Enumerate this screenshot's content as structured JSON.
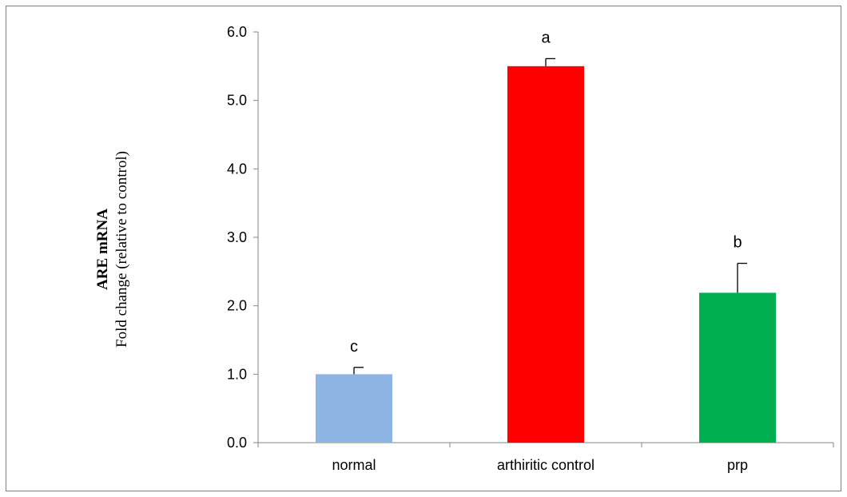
{
  "chart_data": {
    "type": "bar",
    "categories": [
      "normal",
      "arthiritic control",
      "prp"
    ],
    "values": [
      1.0,
      5.5,
      2.19
    ],
    "errors": [
      0.1,
      0.11,
      0.43
    ],
    "significance_labels": [
      "c",
      "a",
      "b"
    ],
    "colors": [
      "#8eb4e3",
      "#ff0000",
      "#00b050"
    ],
    "ylabel_bold": "ARE mRNA",
    "ylabel": "Fold change (relative to control)",
    "yticks": [
      "0.0",
      "1.0",
      "2.0",
      "3.0",
      "4.0",
      "5.0",
      "6.0"
    ],
    "ylim": [
      0,
      6
    ],
    "grid": false,
    "legend": "none"
  }
}
